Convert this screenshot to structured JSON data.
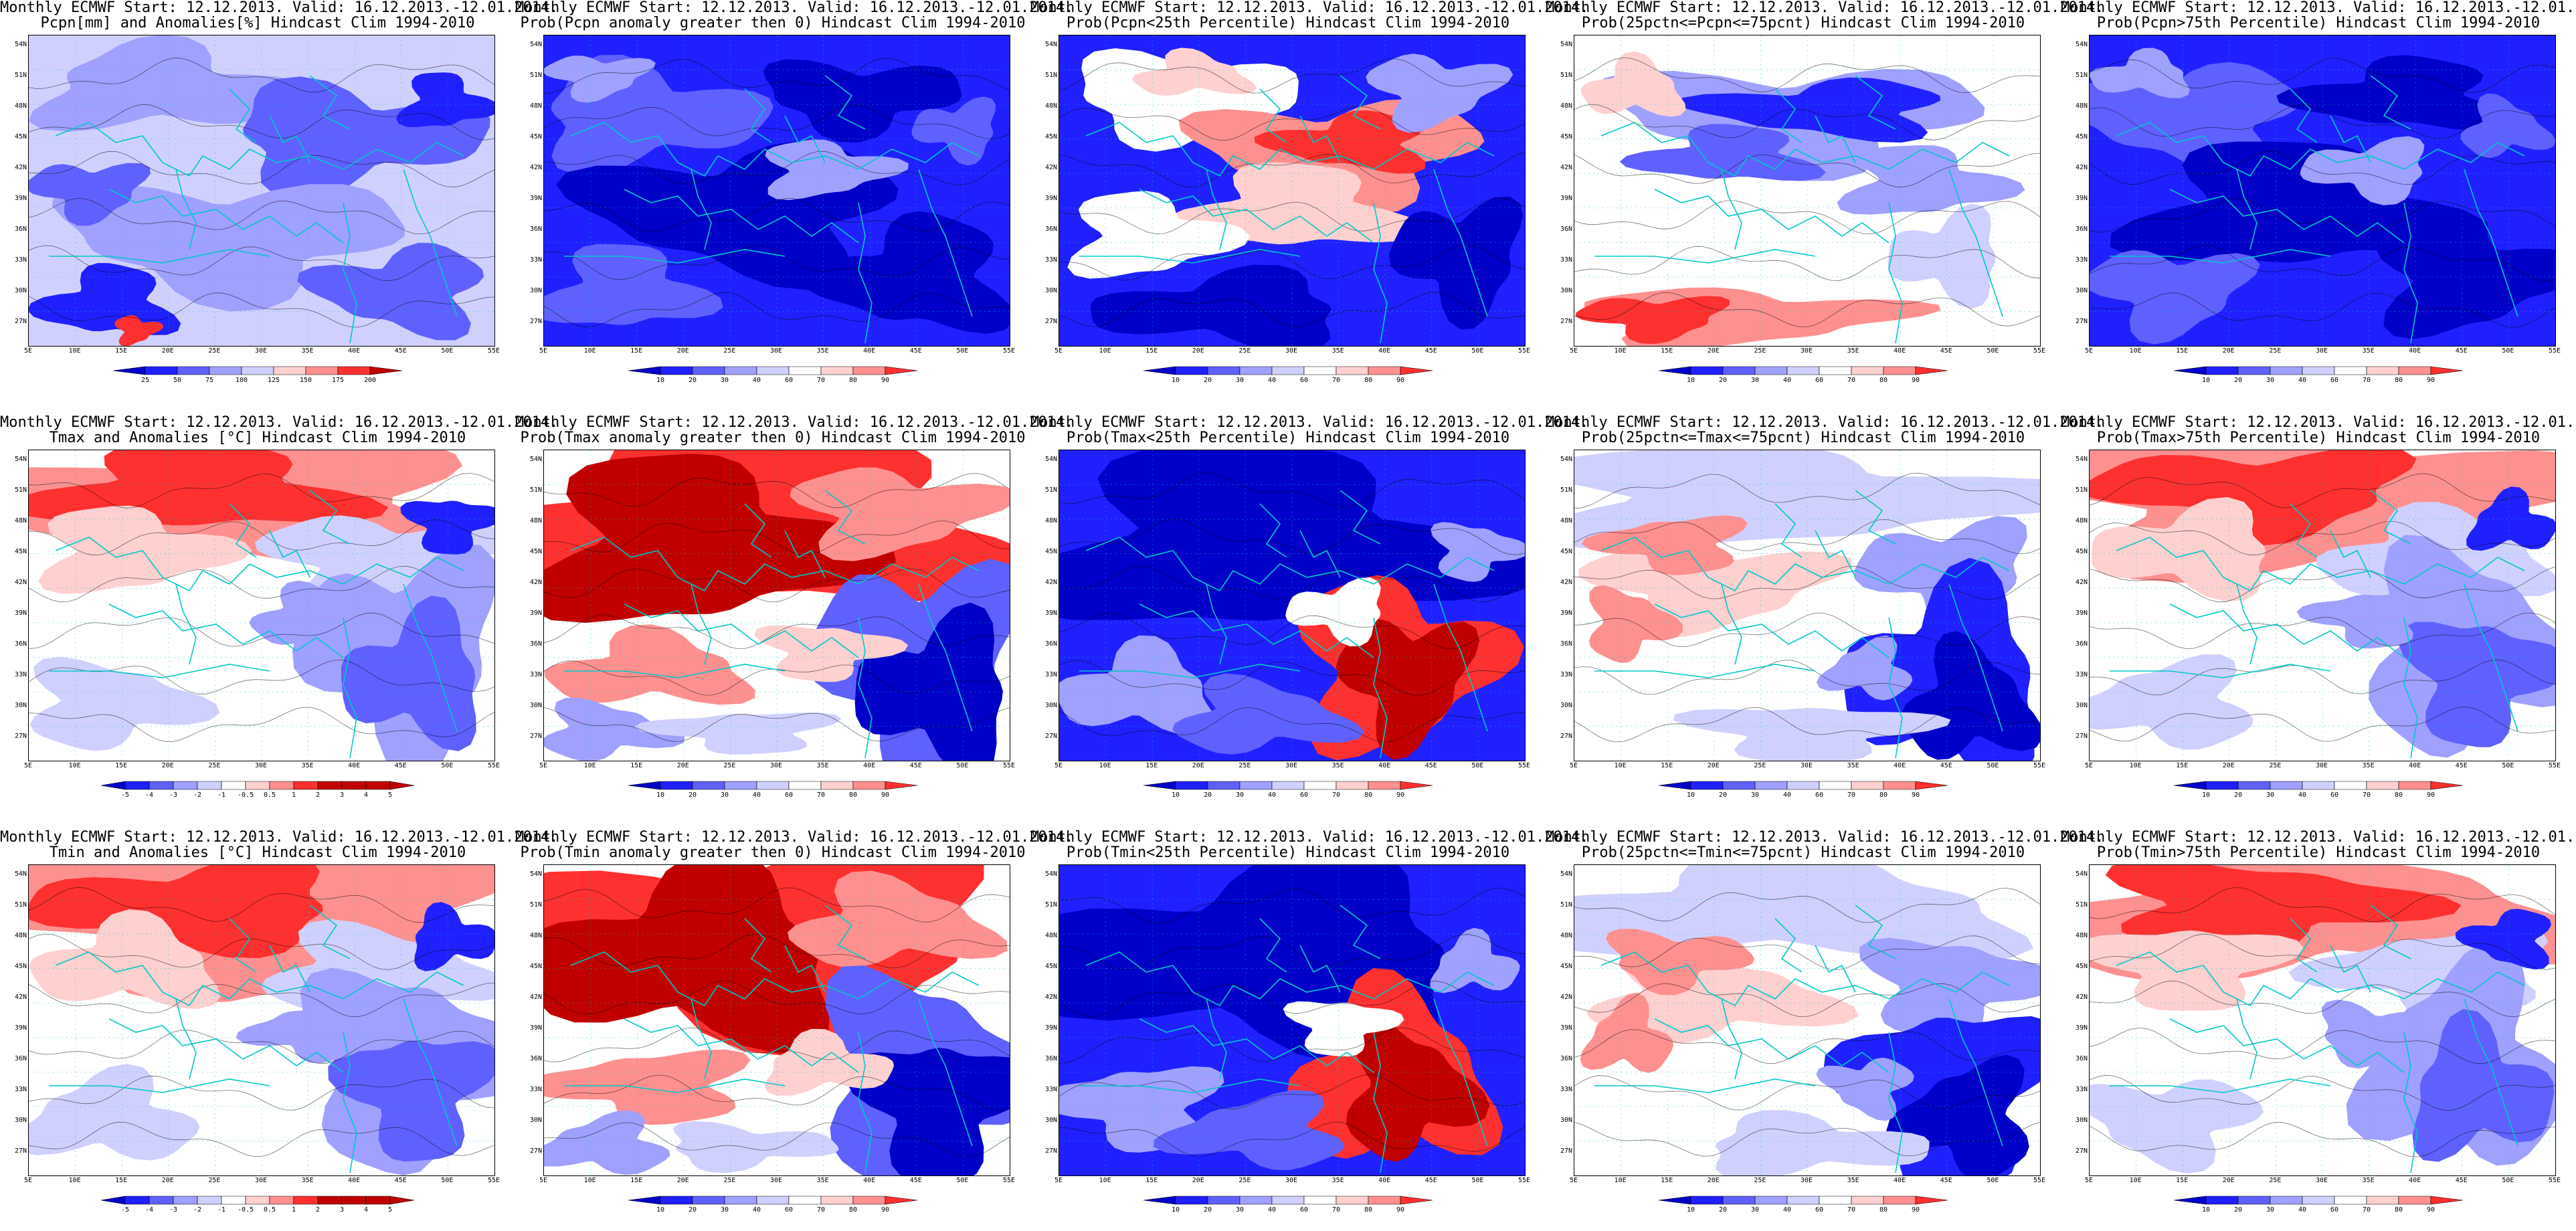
{
  "header_line": "Monthly ECMWF Start: 12.12.2013. Valid: 16.12.2013.-12.01.2014.",
  "latitudes": [
    "54N",
    "51N",
    "48N",
    "45N",
    "42N",
    "39N",
    "36N",
    "33N",
    "30N",
    "27N"
  ],
  "longitudes": [
    "5E",
    "10E",
    "15E",
    "20E",
    "25E",
    "30E",
    "35E",
    "40E",
    "45E",
    "50E",
    "55E"
  ],
  "colors": {
    "deep_blue": "#0000c8",
    "blue": "#2020ff",
    "mid_blue": "#6060ff",
    "light_blue": "#a0a0ff",
    "pale_blue": "#d0d0ff",
    "white": "#ffffff",
    "pale_red": "#ffd0d0",
    "light_red": "#ff9090",
    "red": "#ff3030",
    "deep_red": "#c00000",
    "coast": "#00c8c8",
    "contour": "#000000"
  },
  "colorbars": {
    "precip": [
      "25",
      "50",
      "75",
      "100",
      "125",
      "150",
      "175",
      "200"
    ],
    "prob": [
      "10",
      "20",
      "30",
      "40",
      "60",
      "70",
      "80",
      "90"
    ],
    "temp": [
      "-5",
      "-4",
      "-3",
      "-2",
      "-1",
      "-0.5",
      "0.5",
      "1",
      "2",
      "3",
      "4",
      "5"
    ]
  },
  "panels": [
    {
      "subtitle": "Pcpn[mm] and Anomalies[%] Hindcast Clim 1994-2010",
      "bar": "precip",
      "palette": "mixed_blue"
    },
    {
      "subtitle": "Prob(Pcpn anomaly greater then 0) Hindcast Clim 1994-2010",
      "bar": "prob",
      "palette": "blue"
    },
    {
      "subtitle": "Prob(Pcpn<25th Percentile) Hindcast Clim 1994-2010",
      "bar": "prob",
      "palette": "mixed_red_center"
    },
    {
      "subtitle": "Prob(25pctn<=Pcpn<=75pcnt) Hindcast Clim 1994-2010",
      "bar": "prob",
      "palette": "mixed_blue_band"
    },
    {
      "subtitle": "Prob(Pcpn>75th Percentile) Hindcast Clim 1994-2010",
      "bar": "prob",
      "palette": "blue"
    },
    {
      "subtitle": "Tmax and Anomalies [°C] Hindcast Clim 1994-2010",
      "bar": "temp",
      "palette": "red_north_blue_se"
    },
    {
      "subtitle": "Prob(Tmax anomaly greater then 0) Hindcast Clim 1994-2010",
      "bar": "prob",
      "palette": "deep_red_north_blue_se"
    },
    {
      "subtitle": "Prob(Tmax<25th Percentile) Hindcast Clim 1994-2010",
      "bar": "prob",
      "palette": "blue_red_se"
    },
    {
      "subtitle": "Prob(25pctn<=Tmax<=75pcnt) Hindcast Clim 1994-2010",
      "bar": "prob",
      "palette": "mixed_white"
    },
    {
      "subtitle": "Prob(Tmax>75th Percentile) Hindcast Clim 1994-2010",
      "bar": "prob",
      "palette": "red_north_blue_se"
    },
    {
      "subtitle": "Tmin and Anomalies [°C] Hindcast Clim 1994-2010",
      "bar": "temp",
      "palette": "red_north_blue_se"
    },
    {
      "subtitle": "Prob(Tmin anomaly greater then 0) Hindcast Clim 1994-2010",
      "bar": "prob",
      "palette": "deep_red_north_blue_se"
    },
    {
      "subtitle": "Prob(Tmin<25th Percentile) Hindcast Clim 1994-2010",
      "bar": "prob",
      "palette": "blue_red_se"
    },
    {
      "subtitle": "Prob(25pctn<=Tmin<=75pcnt) Hindcast Clim 1994-2010",
      "bar": "prob",
      "palette": "mixed_white"
    },
    {
      "subtitle": "Prob(Tmin>75th Percentile) Hindcast Clim 1994-2010",
      "bar": "prob",
      "palette": "red_north_blue_se"
    }
  ]
}
